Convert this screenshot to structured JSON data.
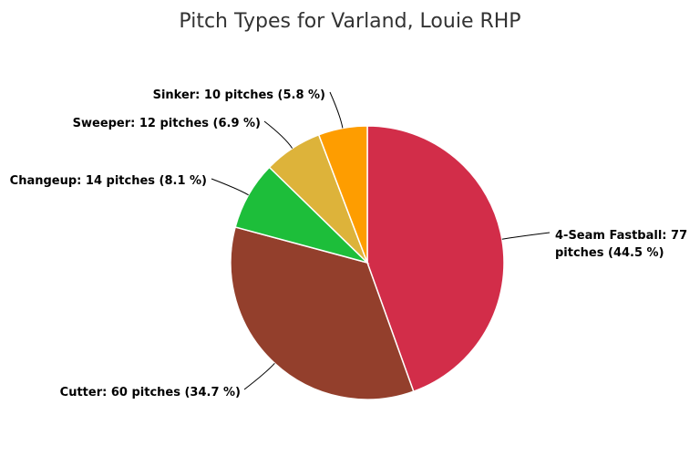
{
  "chart_data": {
    "type": "pie",
    "title": "Pitch Types for Varland, Louie RHP",
    "slices": [
      {
        "name": "4-Seam Fastball",
        "value": 77,
        "label_line1": "4-Seam Fastball: 77",
        "label_line2": "pitches (44.5 %)",
        "color": "#d22d49"
      },
      {
        "name": "Cutter",
        "value": 60,
        "label_line1": "Cutter: 60 pitches (34.7 %)",
        "label_line2": "",
        "color": "#933f2c"
      },
      {
        "name": "Changeup",
        "value": 14,
        "label_line1": "Changeup: 14 pitches (8.1 %)",
        "label_line2": "",
        "color": "#1dbe3a"
      },
      {
        "name": "Sweeper",
        "value": 12,
        "label_line1": "Sweeper: 12 pitches (6.9 %)",
        "label_line2": "",
        "color": "#ddb33a"
      },
      {
        "name": "Sinker",
        "value": 10,
        "label_line1": "Sinker: 10 pitches (5.8 %)",
        "label_line2": "",
        "color": "#fe9d00"
      }
    ]
  }
}
